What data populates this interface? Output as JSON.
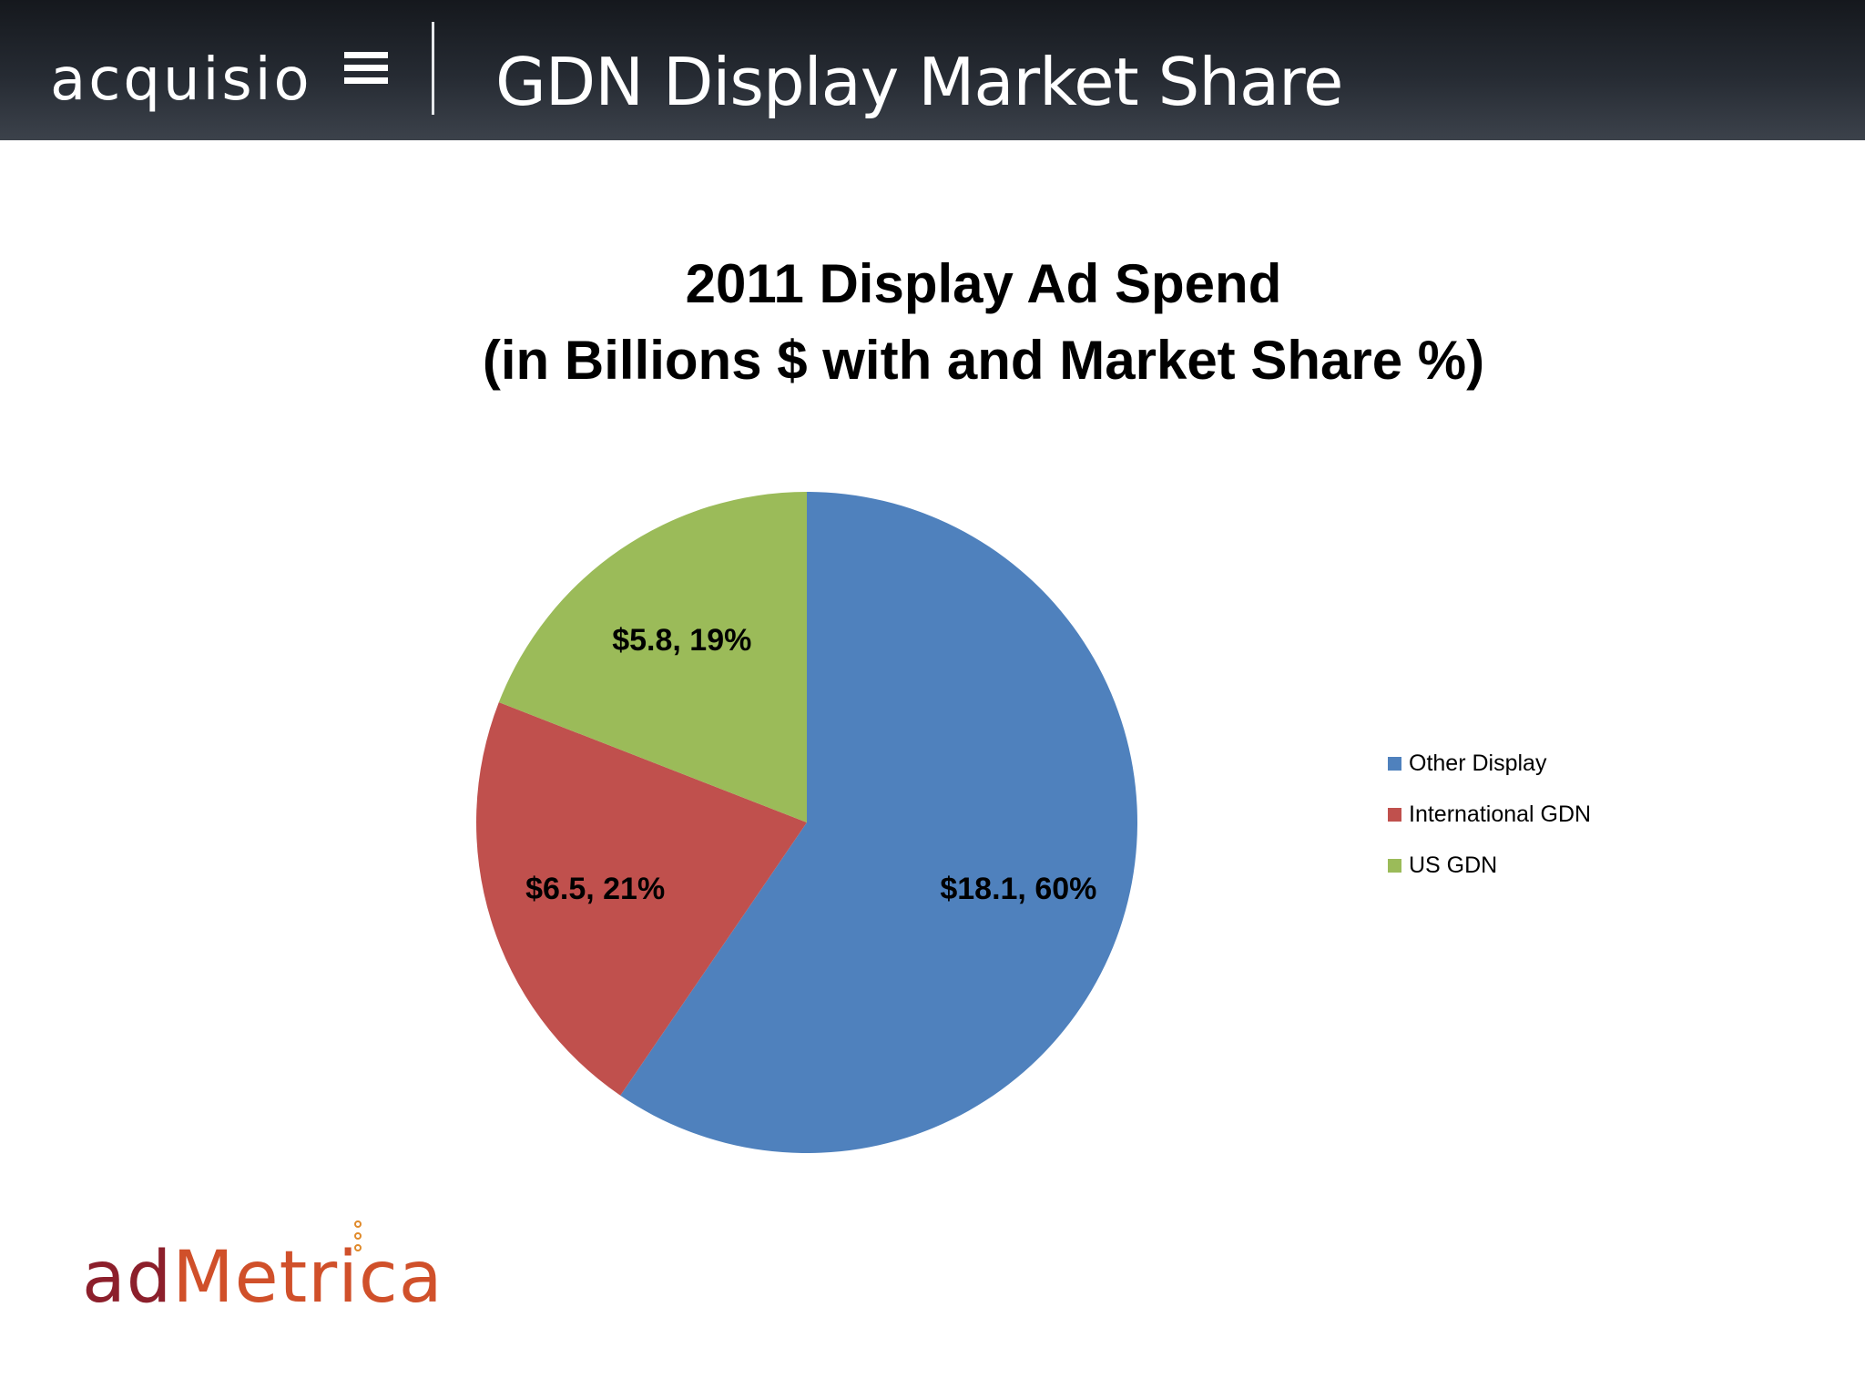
{
  "header": {
    "brand": "acquisio",
    "title": "GDN Display Market Share"
  },
  "chart_data": {
    "type": "pie",
    "title_lines": [
      "2011 Display Ad Spend",
      "(in Billions $ with and Market Share %)"
    ],
    "slices": [
      {
        "name": "Other Display",
        "value": 18.1,
        "percent": 60,
        "label": "$18.1, 60%",
        "color": "#4f81bd"
      },
      {
        "name": "International GDN",
        "value": 6.5,
        "percent": 21,
        "label": "$6.5, 21%",
        "color": "#c0504d"
      },
      {
        "name": "US GDN",
        "value": 5.8,
        "percent": 19,
        "label": "$5.8, 19%",
        "color": "#9bbb59"
      }
    ],
    "legend_placement": "right"
  },
  "footer": {
    "logo_part1": "ad",
    "logo_part2": "Metrica"
  }
}
